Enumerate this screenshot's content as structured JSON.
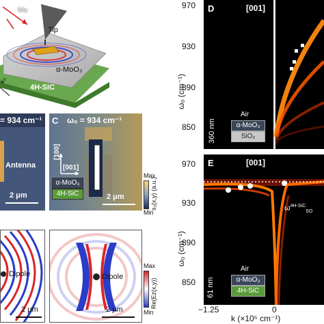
{
  "schematic": {
    "omega_label": "ω₀",
    "tip_label": "Tip",
    "moo3_label": "α-MoO₃",
    "sic_label": "4H-SiC",
    "k_label": "k₀"
  },
  "panel_b": {
    "freq": "= 934 cm⁻¹",
    "antenna": "Antenna",
    "scale": "2 μm"
  },
  "panel_c": {
    "letter": "C",
    "freq": "ω₀ = 934 cm⁻¹",
    "dir_100": "[100]",
    "dir_001": "[001]",
    "moo3": "α-MoO₃",
    "sic": "4H-SiC",
    "scale": "2 μm",
    "cbar_max": "Max",
    "cbar_min": "Min",
    "cbar_label": "s₃(x,y) (a.u.)"
  },
  "panel_bottom_left": {
    "dipole": "Dipole",
    "scale": "2 μm"
  },
  "panel_bottom_mid": {
    "dipole": "Dipole",
    "scale": "2 μm",
    "cbar_max": "Max",
    "cbar_min": "Min",
    "cbar_label": "Re(Ez(x,y))"
  },
  "panel_d": {
    "letter": "D",
    "orientation": "[001]",
    "ylabel": "ω₀ (cm⁻¹)",
    "yticks": [
      "970",
      "930",
      "890",
      "850"
    ],
    "thickness": "360 nm",
    "layers": [
      "Air",
      "α-MoO₃",
      "SiO₂"
    ]
  },
  "panel_e": {
    "letter": "E",
    "orientation": "[001]",
    "ylabel": "ω₀ (cm⁻¹)",
    "yticks": [
      "970",
      "930",
      "890",
      "850"
    ],
    "xticks": [
      "−1.25",
      "0"
    ],
    "xlabel": "k (×10⁵ cm⁻¹)",
    "omega_so": "ω",
    "omega_so_sup": "4H-SiC",
    "omega_so_sub": "SO",
    "thickness": "61 nm",
    "layers": [
      "Air",
      "α-MoO₃",
      "4H-SiC"
    ]
  },
  "colors": {
    "moo3_box": "#3a4658",
    "sic_green": "#5a9a3a",
    "hot": "#ff6a00"
  }
}
